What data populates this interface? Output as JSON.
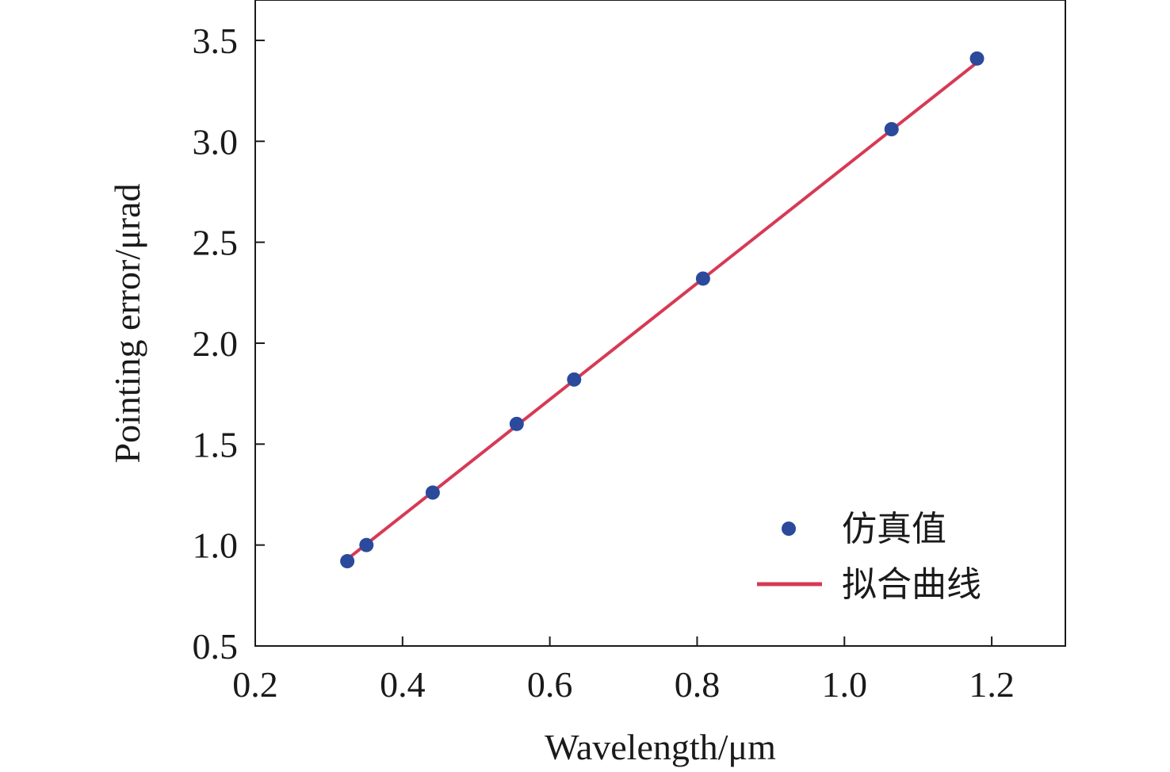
{
  "chart_data": {
    "type": "scatter",
    "title": "",
    "xlabel": "Wavelength/μm",
    "ylabel": "Pointing error/μrad",
    "xlim": [
      0.2,
      1.3
    ],
    "ylim": [
      0.5,
      3.7
    ],
    "xticks": [
      0.2,
      0.4,
      0.6,
      0.8,
      1.0,
      1.2
    ],
    "xtick_labels": [
      "0.2",
      "0.4",
      "0.6",
      "0.8",
      "1.0",
      "1.2"
    ],
    "yticks": [
      0.5,
      1.0,
      1.5,
      2.0,
      2.5,
      3.0,
      3.5
    ],
    "ytick_labels": [
      "0.5",
      "1.0",
      "1.5",
      "2.0",
      "2.5",
      "3.0",
      "3.5"
    ],
    "grid": false,
    "legend_position": "bottom-right",
    "series": [
      {
        "name": "仿真值",
        "kind": "scatter",
        "color": "#2b4a9c",
        "x": [
          0.325,
          0.351,
          0.441,
          0.555,
          0.633,
          0.808,
          1.064,
          1.18
        ],
        "y": [
          0.92,
          1.0,
          1.26,
          1.6,
          1.82,
          2.32,
          3.06,
          3.41
        ]
      },
      {
        "name": "拟合曲线",
        "kind": "line",
        "color": "#d63a55",
        "x": [
          0.325,
          1.18
        ],
        "y": [
          0.93,
          3.39
        ]
      }
    ]
  }
}
